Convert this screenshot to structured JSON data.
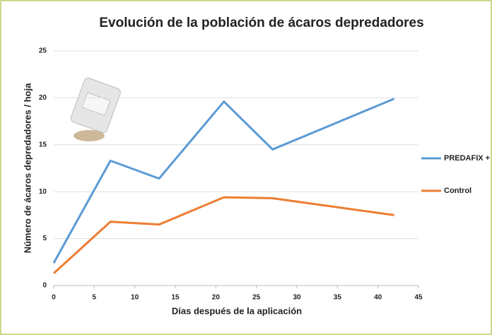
{
  "chart_data": {
    "type": "line",
    "title": "Evolución de la población de ácaros depredadores",
    "xlabel": "Días después de la aplicación",
    "ylabel": "Número de ácaros depredadores / hoja",
    "x": [
      0,
      7,
      13,
      21,
      27,
      42
    ],
    "series": [
      {
        "name": "PREDAFIX +",
        "color": "#5b9bd5",
        "values": [
          2.4,
          13.3,
          11.4,
          19.6,
          14.5,
          19.9
        ]
      },
      {
        "name": "Control",
        "color": "#ed7d31",
        "values": [
          1.3,
          6.8,
          6.5,
          9.4,
          9.3,
          7.5
        ]
      }
    ],
    "xlim": [
      0,
      45
    ],
    "xticks": [
      0,
      5,
      10,
      15,
      20,
      25,
      30,
      35,
      40,
      45
    ],
    "ylim": [
      0,
      25
    ],
    "yticks": [
      0,
      5,
      10,
      15,
      20,
      25
    ],
    "grid": true,
    "legend": "right"
  }
}
